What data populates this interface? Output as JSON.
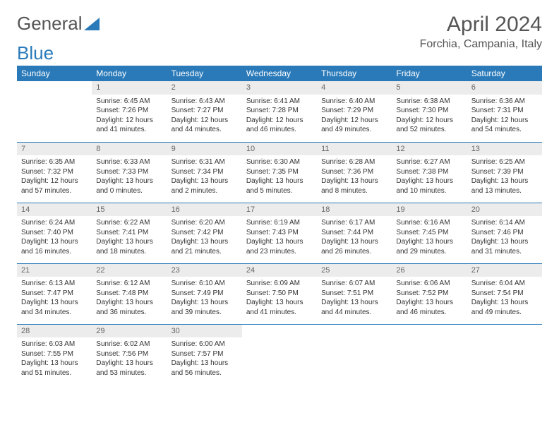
{
  "logo": {
    "text1": "General",
    "text2": "Blue"
  },
  "title": "April 2024",
  "location": "Forchia, Campania, Italy",
  "colors": {
    "accent": "#2a7ab9",
    "header_bg": "#ececec",
    "text": "#333333"
  },
  "weekdays": [
    "Sunday",
    "Monday",
    "Tuesday",
    "Wednesday",
    "Thursday",
    "Friday",
    "Saturday"
  ],
  "weeks": [
    [
      null,
      {
        "n": "1",
        "sr": "6:45 AM",
        "ss": "7:26 PM",
        "dl": "12 hours and 41 minutes."
      },
      {
        "n": "2",
        "sr": "6:43 AM",
        "ss": "7:27 PM",
        "dl": "12 hours and 44 minutes."
      },
      {
        "n": "3",
        "sr": "6:41 AM",
        "ss": "7:28 PM",
        "dl": "12 hours and 46 minutes."
      },
      {
        "n": "4",
        "sr": "6:40 AM",
        "ss": "7:29 PM",
        "dl": "12 hours and 49 minutes."
      },
      {
        "n": "5",
        "sr": "6:38 AM",
        "ss": "7:30 PM",
        "dl": "12 hours and 52 minutes."
      },
      {
        "n": "6",
        "sr": "6:36 AM",
        "ss": "7:31 PM",
        "dl": "12 hours and 54 minutes."
      }
    ],
    [
      {
        "n": "7",
        "sr": "6:35 AM",
        "ss": "7:32 PM",
        "dl": "12 hours and 57 minutes."
      },
      {
        "n": "8",
        "sr": "6:33 AM",
        "ss": "7:33 PM",
        "dl": "13 hours and 0 minutes."
      },
      {
        "n": "9",
        "sr": "6:31 AM",
        "ss": "7:34 PM",
        "dl": "13 hours and 2 minutes."
      },
      {
        "n": "10",
        "sr": "6:30 AM",
        "ss": "7:35 PM",
        "dl": "13 hours and 5 minutes."
      },
      {
        "n": "11",
        "sr": "6:28 AM",
        "ss": "7:36 PM",
        "dl": "13 hours and 8 minutes."
      },
      {
        "n": "12",
        "sr": "6:27 AM",
        "ss": "7:38 PM",
        "dl": "13 hours and 10 minutes."
      },
      {
        "n": "13",
        "sr": "6:25 AM",
        "ss": "7:39 PM",
        "dl": "13 hours and 13 minutes."
      }
    ],
    [
      {
        "n": "14",
        "sr": "6:24 AM",
        "ss": "7:40 PM",
        "dl": "13 hours and 16 minutes."
      },
      {
        "n": "15",
        "sr": "6:22 AM",
        "ss": "7:41 PM",
        "dl": "13 hours and 18 minutes."
      },
      {
        "n": "16",
        "sr": "6:20 AM",
        "ss": "7:42 PM",
        "dl": "13 hours and 21 minutes."
      },
      {
        "n": "17",
        "sr": "6:19 AM",
        "ss": "7:43 PM",
        "dl": "13 hours and 23 minutes."
      },
      {
        "n": "18",
        "sr": "6:17 AM",
        "ss": "7:44 PM",
        "dl": "13 hours and 26 minutes."
      },
      {
        "n": "19",
        "sr": "6:16 AM",
        "ss": "7:45 PM",
        "dl": "13 hours and 29 minutes."
      },
      {
        "n": "20",
        "sr": "6:14 AM",
        "ss": "7:46 PM",
        "dl": "13 hours and 31 minutes."
      }
    ],
    [
      {
        "n": "21",
        "sr": "6:13 AM",
        "ss": "7:47 PM",
        "dl": "13 hours and 34 minutes."
      },
      {
        "n": "22",
        "sr": "6:12 AM",
        "ss": "7:48 PM",
        "dl": "13 hours and 36 minutes."
      },
      {
        "n": "23",
        "sr": "6:10 AM",
        "ss": "7:49 PM",
        "dl": "13 hours and 39 minutes."
      },
      {
        "n": "24",
        "sr": "6:09 AM",
        "ss": "7:50 PM",
        "dl": "13 hours and 41 minutes."
      },
      {
        "n": "25",
        "sr": "6:07 AM",
        "ss": "7:51 PM",
        "dl": "13 hours and 44 minutes."
      },
      {
        "n": "26",
        "sr": "6:06 AM",
        "ss": "7:52 PM",
        "dl": "13 hours and 46 minutes."
      },
      {
        "n": "27",
        "sr": "6:04 AM",
        "ss": "7:54 PM",
        "dl": "13 hours and 49 minutes."
      }
    ],
    [
      {
        "n": "28",
        "sr": "6:03 AM",
        "ss": "7:55 PM",
        "dl": "13 hours and 51 minutes."
      },
      {
        "n": "29",
        "sr": "6:02 AM",
        "ss": "7:56 PM",
        "dl": "13 hours and 53 minutes."
      },
      {
        "n": "30",
        "sr": "6:00 AM",
        "ss": "7:57 PM",
        "dl": "13 hours and 56 minutes."
      },
      null,
      null,
      null,
      null
    ]
  ],
  "labels": {
    "sunrise": "Sunrise:",
    "sunset": "Sunset:",
    "daylight": "Daylight:"
  }
}
